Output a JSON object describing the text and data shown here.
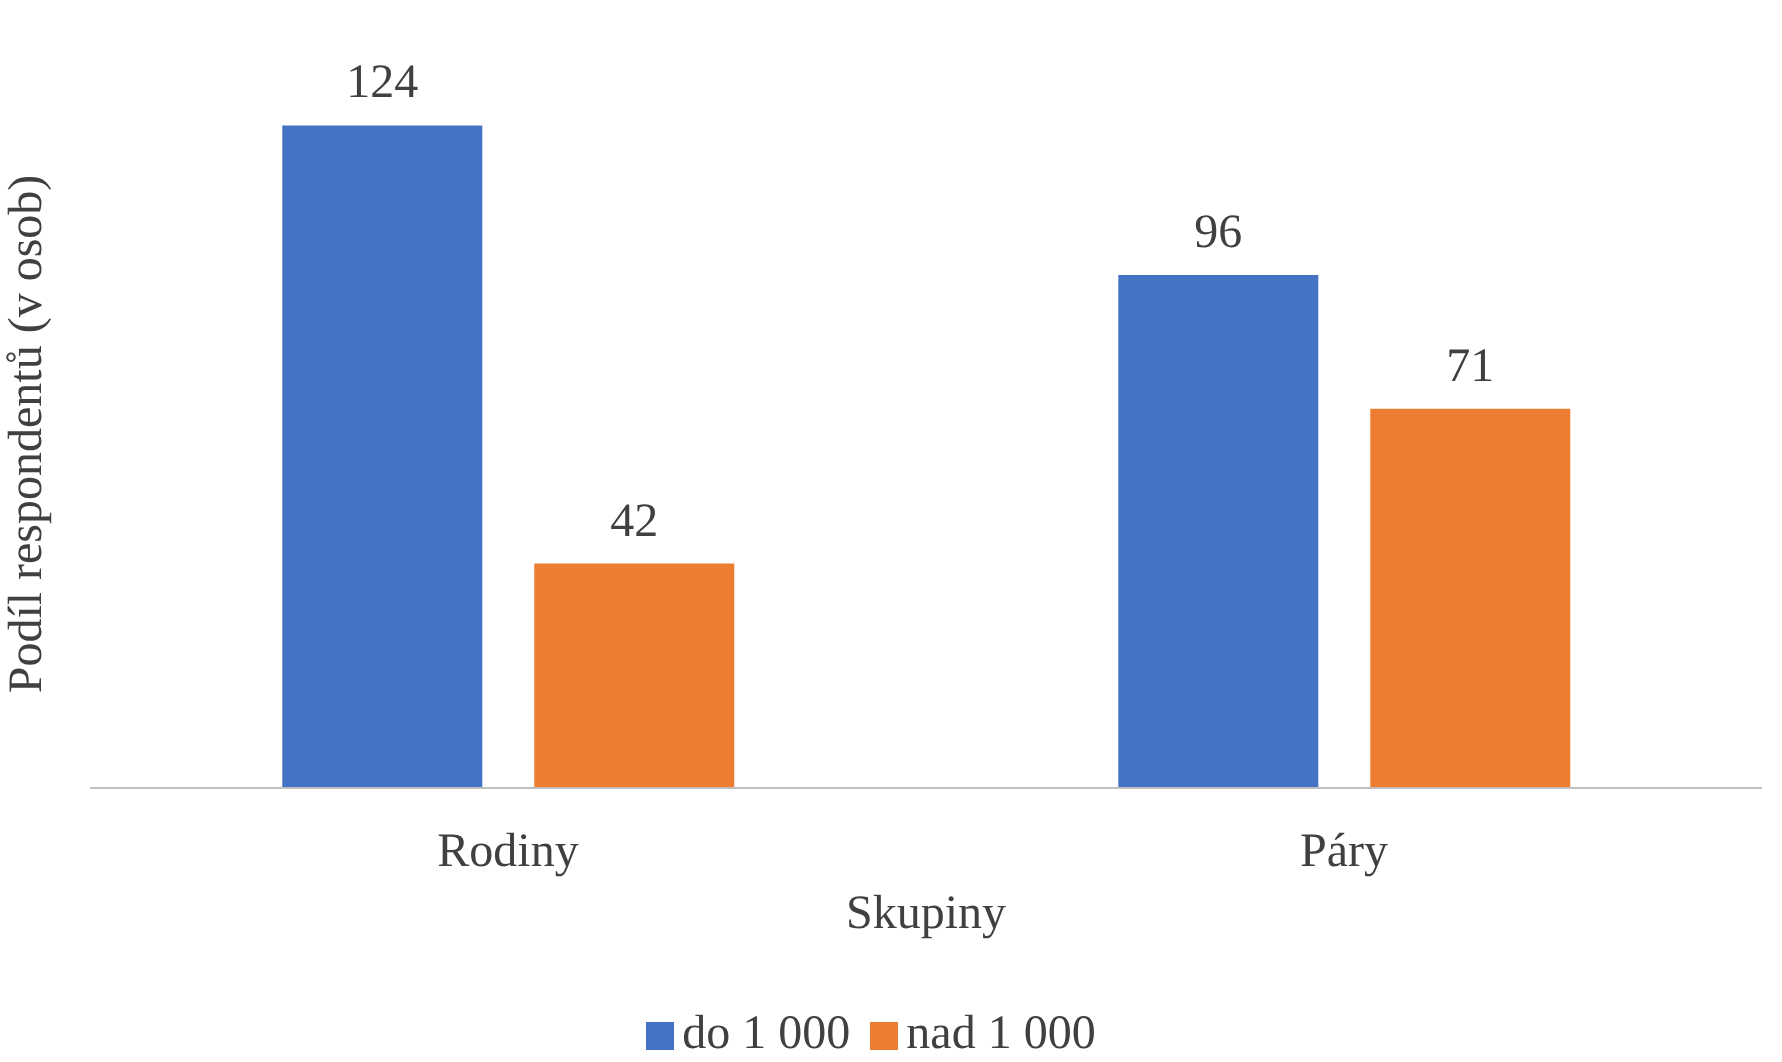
{
  "chart_data": {
    "type": "bar",
    "xlabel": "Skupiny",
    "ylabel": "Podíl respondentů (v osob)",
    "categories": [
      "Rodiny",
      "Páry"
    ],
    "series": [
      {
        "name": "do 1 000",
        "color": "#4472c4",
        "values": [
          124,
          96
        ]
      },
      {
        "name": "nad 1 000",
        "color": "#ed7d31",
        "values": [
          42,
          71
        ]
      }
    ],
    "tick_labels": "x",
    "data_labels": true,
    "grid": false,
    "legend": "bottom"
  }
}
